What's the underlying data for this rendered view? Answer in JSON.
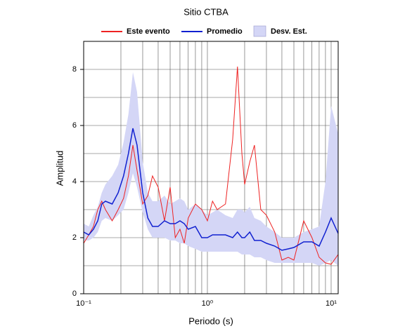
{
  "chart_data": {
    "type": "line",
    "title": "Sitio CTBA",
    "x_label": "Periodo (s)",
    "y_label": "Amplitud",
    "x_scale": "log",
    "grid": true,
    "xlim": [
      0.1,
      11.4
    ],
    "ylim": [
      0,
      9
    ],
    "xticks": [
      {
        "value": 0.1,
        "label": "10⁻¹"
      },
      {
        "value": 1,
        "label": "10⁰"
      },
      {
        "value": 10,
        "label": "10¹"
      }
    ],
    "yticks": [
      0,
      2,
      4,
      6,
      8
    ],
    "yminor": [
      1,
      3,
      5,
      7
    ],
    "x": [
      0.1,
      0.11,
      0.12,
      0.13,
      0.14,
      0.15,
      0.17,
      0.19,
      0.21,
      0.23,
      0.25,
      0.27,
      0.3,
      0.33,
      0.36,
      0.4,
      0.45,
      0.5,
      0.55,
      0.6,
      0.65,
      0.7,
      0.8,
      0.9,
      1.0,
      1.1,
      1.2,
      1.4,
      1.6,
      1.75,
      1.9,
      2.0,
      2.2,
      2.4,
      2.7,
      3.0,
      3.5,
      4,
      4.5,
      5,
      6,
      7,
      8,
      9,
      10,
      11.4
    ],
    "series": [
      {
        "name": "Desv. Est.",
        "kind": "band",
        "color": "#d4d6f6",
        "lower": [
          1.9,
          1.9,
          2.0,
          2.2,
          2.6,
          2.7,
          2.6,
          2.8,
          3.0,
          3.6,
          4.3,
          3.8,
          2.9,
          2.3,
          2.0,
          2.0,
          2.0,
          1.9,
          1.9,
          1.8,
          1.8,
          1.7,
          1.6,
          1.5,
          1.5,
          1.5,
          1.5,
          1.5,
          1.5,
          1.5,
          1.4,
          1.4,
          1.4,
          1.3,
          1.3,
          1.2,
          1.1,
          1.1,
          1.1,
          1.1,
          1.1,
          1.1,
          1.0,
          1.1,
          1.2,
          1.0
        ],
        "upper": [
          2.5,
          2.4,
          2.8,
          3.1,
          3.6,
          3.9,
          4.2,
          4.6,
          5.4,
          6.4,
          7.9,
          7.2,
          4.7,
          3.6,
          3.3,
          3.3,
          3.5,
          3.2,
          3.3,
          3.4,
          3.3,
          3.0,
          3.2,
          3.0,
          2.8,
          2.9,
          3.0,
          2.8,
          2.7,
          3.0,
          3.0,
          2.9,
          3.1,
          2.7,
          2.6,
          2.4,
          2.2,
          2.0,
          2.0,
          2.0,
          2.2,
          2.3,
          2.4,
          4.0,
          6.7,
          5.7
        ]
      },
      {
        "name": "Este evento",
        "kind": "line",
        "color": "#ee2222",
        "values": [
          1.8,
          2.1,
          2.4,
          3.0,
          3.3,
          3.0,
          2.6,
          3.0,
          3.4,
          4.2,
          5.3,
          4.4,
          3.2,
          3.5,
          4.2,
          3.8,
          2.6,
          3.8,
          2.0,
          2.3,
          1.8,
          2.7,
          3.2,
          3.0,
          2.6,
          3.3,
          3.0,
          3.2,
          5.5,
          8.1,
          5.0,
          3.9,
          4.7,
          5.3,
          3.0,
          2.8,
          2.2,
          1.2,
          1.3,
          1.2,
          2.6,
          2.0,
          1.3,
          1.1,
          1.05,
          1.4
        ]
      },
      {
        "name": "Promedio",
        "kind": "line",
        "color": "#1020d0",
        "values": [
          2.2,
          2.1,
          2.3,
          2.6,
          3.2,
          3.3,
          3.2,
          3.6,
          4.2,
          5.0,
          5.9,
          5.3,
          3.6,
          2.7,
          2.4,
          2.4,
          2.6,
          2.5,
          2.5,
          2.6,
          2.5,
          2.3,
          2.4,
          2.0,
          2.0,
          2.1,
          2.1,
          2.1,
          2.0,
          2.2,
          2.0,
          2.0,
          2.2,
          1.9,
          1.9,
          1.8,
          1.7,
          1.55,
          1.6,
          1.65,
          1.85,
          1.85,
          1.7,
          2.2,
          2.7,
          2.15
        ]
      }
    ]
  }
}
